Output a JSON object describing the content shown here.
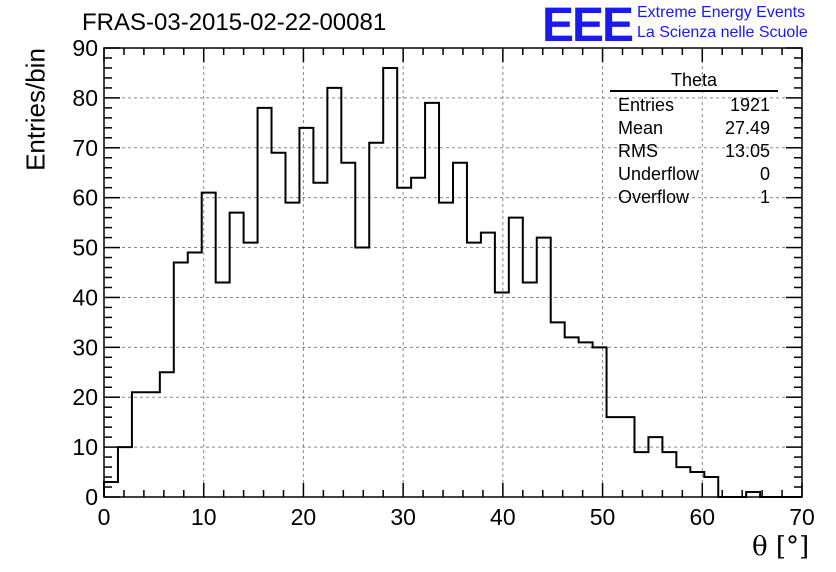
{
  "chart_data": {
    "type": "histogram",
    "title": "FRAS-03-2015-02-22-00081",
    "xlabel": "θ [°]",
    "ylabel": "Entries/bin",
    "xlim": [
      0,
      70
    ],
    "ylim": [
      0,
      90
    ],
    "bin_width": 1.4,
    "bin_start": 0,
    "x_ticks": [
      "0",
      "10",
      "20",
      "30",
      "40",
      "50",
      "60",
      "70"
    ],
    "y_ticks": [
      "0",
      "10",
      "20",
      "30",
      "40",
      "50",
      "60",
      "70",
      "80",
      "90"
    ],
    "grid": true,
    "values": [
      3,
      10,
      21,
      21,
      25,
      47,
      49,
      61,
      43,
      57,
      51,
      78,
      69,
      59,
      74,
      63,
      82,
      67,
      50,
      71,
      86,
      62,
      64,
      79,
      59,
      67,
      51,
      53,
      41,
      56,
      43,
      52,
      35,
      32,
      31,
      30,
      16,
      16,
      9,
      12,
      9,
      6,
      5,
      4,
      0,
      0,
      1,
      0,
      0,
      0
    ]
  },
  "stats_box": {
    "title": "Theta",
    "rows": [
      {
        "label": "Entries",
        "value": "1921"
      },
      {
        "label": "Mean",
        "value": "27.49"
      },
      {
        "label": "RMS",
        "value": "13.05"
      },
      {
        "label": "Underflow",
        "value": "0"
      },
      {
        "label": "Overflow",
        "value": "1"
      }
    ]
  },
  "logo": {
    "mark": "EEE",
    "line1": "Extreme Energy Events",
    "line2": "La Scienza nelle Scuole",
    "color": "#1a1aee"
  }
}
